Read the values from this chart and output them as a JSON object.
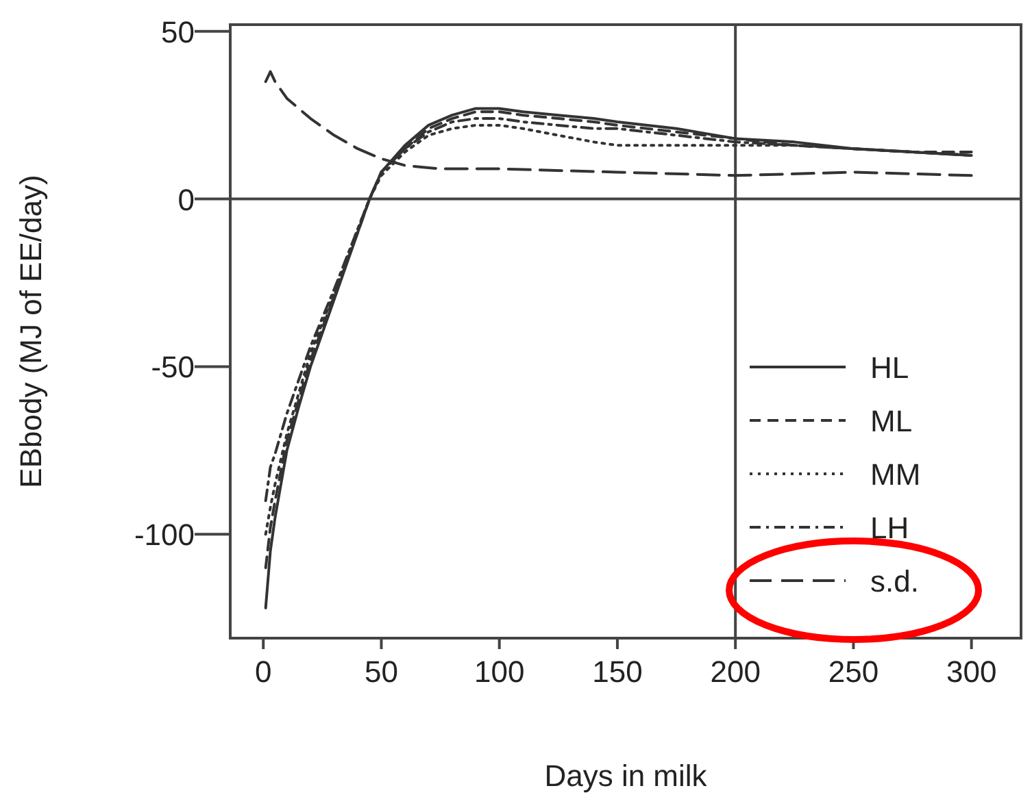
{
  "chart_data": {
    "type": "line",
    "xlabel": "Days in milk",
    "ylabel": "EBbody (MJ of EE/day)",
    "xlim": [
      -14,
      321
    ],
    "ylim": [
      -131,
      52
    ],
    "xticks": [
      0,
      50,
      100,
      150,
      200,
      250,
      300
    ],
    "yticks": [
      -100,
      -50,
      0,
      50
    ],
    "grid": false,
    "legend": "bottom right",
    "ref_lines": [
      {
        "axis": "y",
        "value": 0
      },
      {
        "axis": "x",
        "value": 200
      }
    ],
    "series": [
      {
        "name": "HL",
        "color": "#333333",
        "line_style": "solid",
        "x": [
          1,
          3,
          5,
          10,
          15,
          20,
          30,
          40,
          45,
          50,
          60,
          70,
          80,
          90,
          100,
          110,
          125,
          140,
          150,
          175,
          200,
          225,
          250,
          275,
          300
        ],
        "values": [
          -122,
          -105,
          -95,
          -75,
          -62,
          -50,
          -30,
          -10,
          0,
          8,
          16,
          22,
          25,
          27,
          27,
          26,
          25,
          24,
          23,
          21,
          18,
          17,
          15,
          14,
          13
        ]
      },
      {
        "name": "ML",
        "color": "#333333",
        "line_style": "dashed",
        "x": [
          1,
          3,
          5,
          10,
          15,
          20,
          30,
          40,
          45,
          50,
          60,
          70,
          80,
          90,
          100,
          110,
          125,
          140,
          150,
          175,
          200,
          225,
          250,
          275,
          300
        ],
        "values": [
          -110,
          -98,
          -90,
          -72,
          -60,
          -48,
          -29,
          -10,
          0,
          8,
          15,
          21,
          24,
          26,
          26,
          25,
          24,
          23,
          22,
          20,
          18,
          16,
          15,
          14,
          14
        ]
      },
      {
        "name": "MM",
        "color": "#333333",
        "line_style": "dotted",
        "x": [
          1,
          3,
          5,
          10,
          15,
          20,
          30,
          40,
          45,
          50,
          60,
          70,
          80,
          90,
          100,
          110,
          125,
          140,
          150,
          175,
          200,
          225,
          250,
          275,
          300
        ],
        "values": [
          -100,
          -92,
          -85,
          -70,
          -58,
          -46,
          -28,
          -9,
          0,
          7,
          14,
          19,
          21,
          22,
          22,
          21,
          19,
          17,
          16,
          16,
          16,
          16,
          15,
          14,
          13
        ]
      },
      {
        "name": "LH",
        "color": "#333333",
        "line_style": "dashdot",
        "x": [
          1,
          3,
          5,
          10,
          15,
          20,
          30,
          40,
          45,
          50,
          60,
          70,
          80,
          90,
          100,
          110,
          125,
          140,
          150,
          175,
          200,
          225,
          250,
          275,
          300
        ],
        "values": [
          -90,
          -80,
          -76,
          -64,
          -54,
          -44,
          -27,
          -9,
          0,
          8,
          15,
          20,
          23,
          24,
          24,
          23,
          22,
          21,
          21,
          19,
          17,
          16,
          15,
          14,
          13
        ]
      },
      {
        "name": "s.d.",
        "color": "#333333",
        "line_style": "longdash",
        "x": [
          1,
          3,
          5,
          10,
          20,
          30,
          40,
          50,
          60,
          75,
          100,
          150,
          200,
          250,
          300
        ],
        "values": [
          35,
          38,
          35,
          30,
          24,
          19,
          15,
          12,
          10,
          9,
          9,
          8,
          7,
          8,
          7
        ]
      }
    ]
  }
}
